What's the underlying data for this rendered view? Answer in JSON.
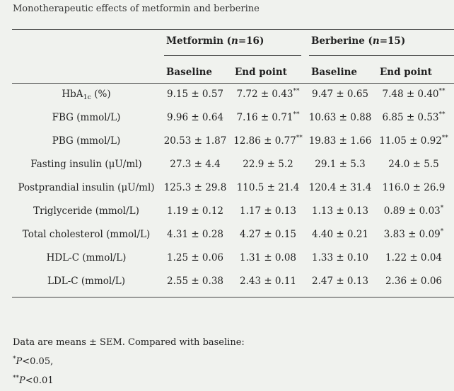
{
  "caption": "Monotherapeutic effects of metformin and berberine",
  "groups": [
    {
      "name": "Metformin",
      "n_label": "n",
      "n_value": "=16"
    },
    {
      "name": "Berberine",
      "n_label": "n",
      "n_value": "=15"
    }
  ],
  "subheaders": [
    "Baseline",
    "End point",
    "Baseline",
    "End point"
  ],
  "rows": [
    {
      "label": "HbA",
      "label_sub": "1c",
      "label_tail": " (%)",
      "values": [
        "9.15 ± 0.57",
        "7.72 ± 0.43",
        "9.47 ± 0.65",
        "7.48 ± 0.40"
      ],
      "marks": [
        "",
        "**",
        "",
        "**"
      ]
    },
    {
      "label": "FBG (mmol/L)",
      "label_sub": "",
      "label_tail": "",
      "values": [
        "9.96 ± 0.64",
        "7.16 ± 0.71",
        "10.63 ± 0.88",
        "6.85 ± 0.53"
      ],
      "marks": [
        "",
        "**",
        "",
        "**"
      ]
    },
    {
      "label": "PBG (mmol/L)",
      "label_sub": "",
      "label_tail": "",
      "values": [
        "20.53 ± 1.87",
        "12.86 ± 0.77",
        "19.83 ± 1.66",
        "11.05 ± 0.92"
      ],
      "marks": [
        "",
        "**",
        "",
        "**"
      ]
    },
    {
      "label": "Fasting insulin (μU/ml)",
      "label_sub": "",
      "label_tail": "",
      "values": [
        "27.3 ± 4.4",
        "22.9 ± 5.2",
        "29.1 ± 5.3",
        "24.0 ± 5.5"
      ],
      "marks": [
        "",
        "",
        "",
        ""
      ]
    },
    {
      "label": "Postprandial insulin (μU/ml)",
      "label_sub": "",
      "label_tail": "",
      "values": [
        "125.3 ± 29.8",
        "110.5 ± 21.4",
        "120.4 ± 31.4",
        "116.0 ± 26.9"
      ],
      "marks": [
        "",
        "",
        "",
        ""
      ]
    },
    {
      "label": "Triglyceride (mmol/L)",
      "label_sub": "",
      "label_tail": "",
      "values": [
        "1.19 ± 0.12",
        "1.17 ± 0.13",
        "1.13 ± 0.13",
        "0.89 ± 0.03"
      ],
      "marks": [
        "",
        "",
        "",
        "*"
      ]
    },
    {
      "label": "Total cholesterol (mmol/L)",
      "label_sub": "",
      "label_tail": "",
      "values": [
        "4.31 ± 0.28",
        "4.27 ± 0.15",
        "4.40 ± 0.21",
        "3.83 ± 0.09"
      ],
      "marks": [
        "",
        "",
        "",
        "*"
      ]
    },
    {
      "label": "HDL-C (mmol/L)",
      "label_sub": "",
      "label_tail": "",
      "values": [
        "1.25 ± 0.06",
        "1.31 ± 0.08",
        "1.33 ± 0.10",
        "1.22 ± 0.04"
      ],
      "marks": [
        "",
        "",
        "",
        ""
      ]
    },
    {
      "label": "LDL-C (mmol/L)",
      "label_sub": "",
      "label_tail": "",
      "values": [
        "2.55 ± 0.38",
        "2.43 ± 0.11",
        "2.47 ± 0.13",
        "2.36 ± 0.06"
      ],
      "marks": [
        "",
        "",
        "",
        ""
      ]
    }
  ],
  "footnotes": {
    "intro": "Data are means ± SEM. Compared with baseline:",
    "items": [
      {
        "symbol": "*",
        "p": "P",
        "text": "<0.05,"
      },
      {
        "symbol": "**",
        "p": "P",
        "text": "<0.01"
      }
    ]
  }
}
